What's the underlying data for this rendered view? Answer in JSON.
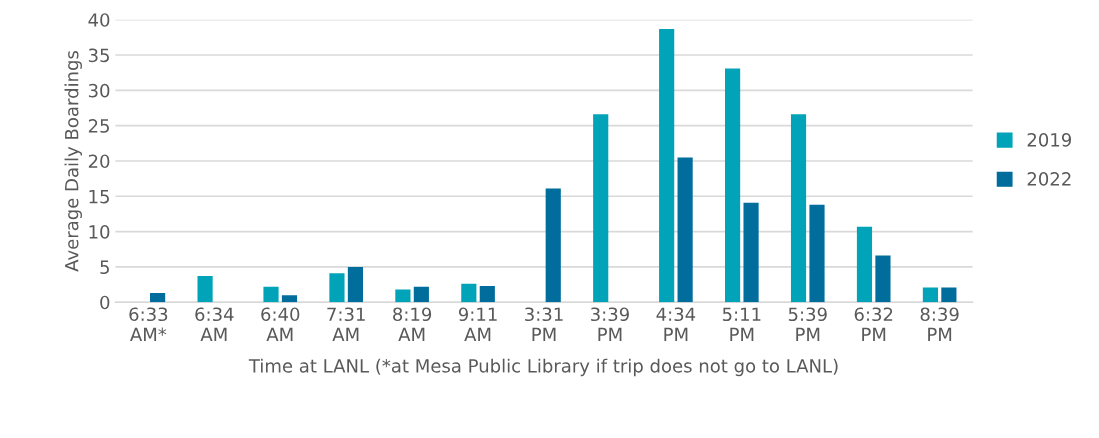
{
  "chart_data": {
    "type": "bar",
    "xlabel": "Time at LANL (*at Mesa Public Library if trip does not go to LANL)",
    "ylabel": "Average Daily Boardings",
    "categories": [
      "6:33\nAM*",
      "6:34\nAM",
      "6:40\nAM",
      "7:31\nAM",
      "8:19\nAM",
      "9:11\nAM",
      "3:31\nPM",
      "3:39\nPM",
      "4:34\nPM",
      "5:11\nPM",
      "5:39\nPM",
      "6:32\nPM",
      "8:39\nPM"
    ],
    "series": [
      {
        "name": "2019",
        "color": "#00a3b7",
        "values": [
          null,
          3.7,
          2.2,
          4.1,
          1.8,
          2.6,
          null,
          26.6,
          38.7,
          33.1,
          26.6,
          10.7,
          2.1
        ]
      },
      {
        "name": "2022",
        "color": "#006d9c",
        "values": [
          1.3,
          null,
          1.0,
          5.0,
          2.2,
          2.3,
          16.1,
          null,
          20.5,
          14.1,
          13.8,
          6.6,
          2.1
        ]
      }
    ],
    "ylim": [
      0,
      40
    ],
    "yticks": [
      0,
      5,
      10,
      15,
      20,
      25,
      30,
      35,
      40
    ],
    "grid": "y",
    "legend": "right"
  }
}
